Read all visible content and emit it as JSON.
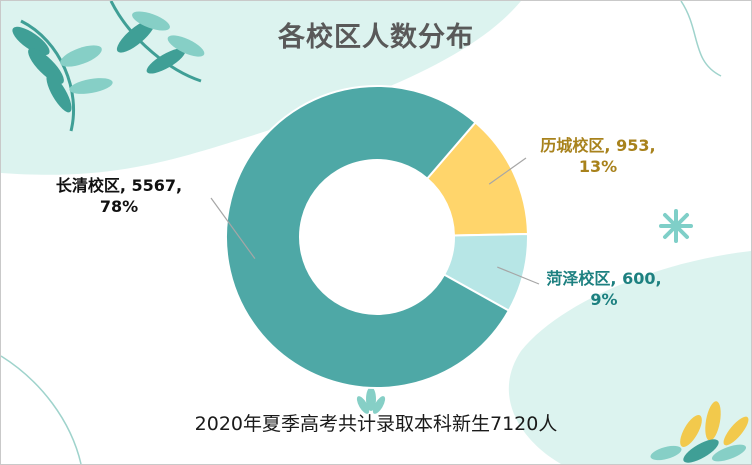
{
  "title": "各校区人数分布",
  "caption": "2020年夏季高考共计录取本科新生7120人",
  "colors": {
    "background_blob": "#dcf3ef",
    "leaf_dark": "#3f9f96",
    "leaf_light": "#86cfc6",
    "leaf_yellow": "#f2c94c"
  },
  "chart_data": {
    "type": "pie",
    "variant": "donut",
    "title": "各校区人数分布",
    "legend": "none",
    "slices": [
      {
        "name": "历城校区",
        "value": 953,
        "percent": 13,
        "color": "#ffd56b",
        "label_color": "#a8821c",
        "label_lines": [
          "历城校区, 953,",
          "13%"
        ]
      },
      {
        "name": "菏泽校区",
        "value": 600,
        "percent": 9,
        "color": "#b7e6e6",
        "label_color": "#1d8080",
        "label_lines": [
          "菏泽校区, 600,",
          "9%"
        ]
      },
      {
        "name": "长清校区",
        "value": 5567,
        "percent": 78,
        "color": "#4ea8a6",
        "label_color": "#111111",
        "label_lines": [
          "长清校区, 5567,",
          "78%"
        ]
      }
    ]
  }
}
